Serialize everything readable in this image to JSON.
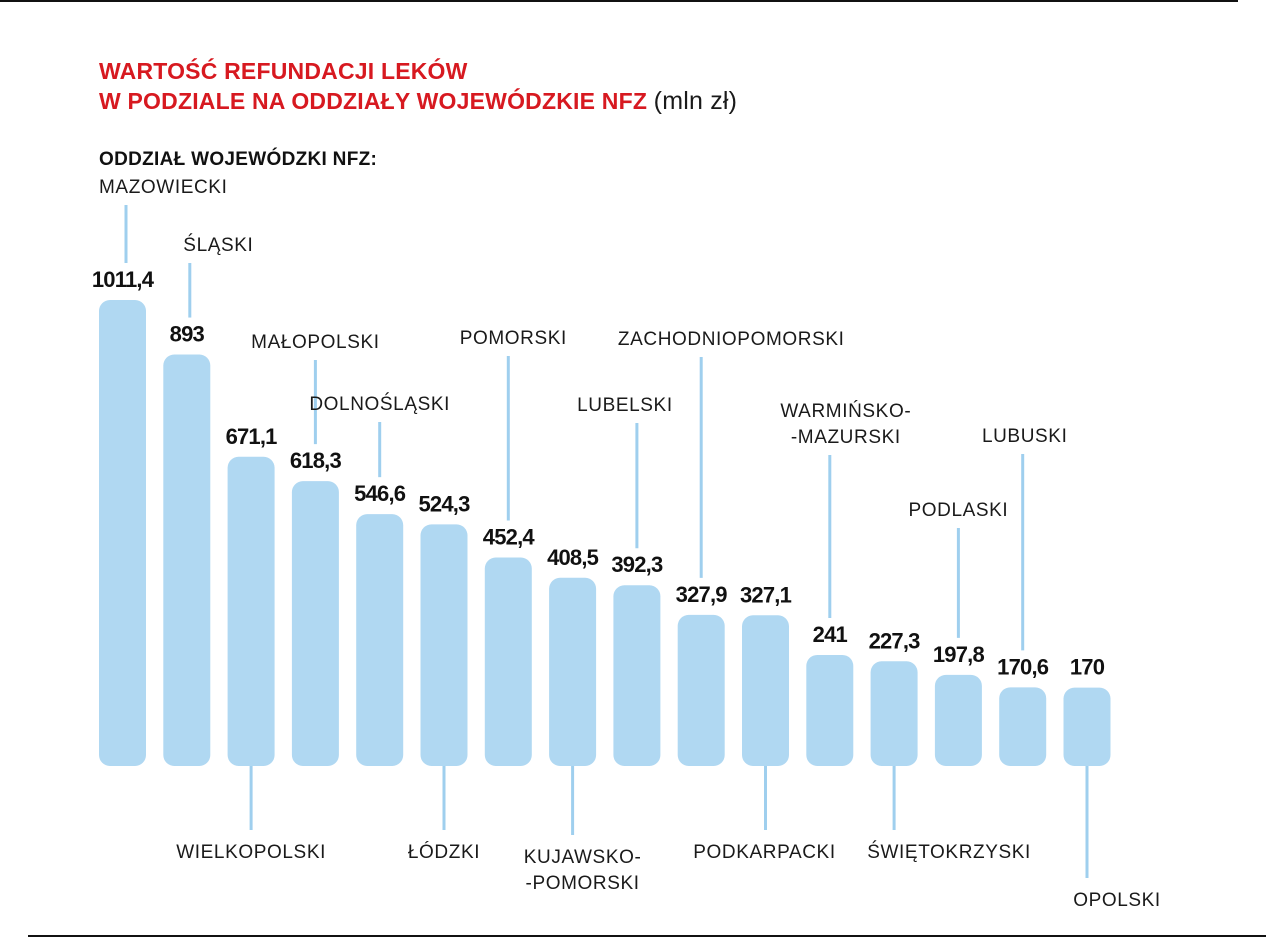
{
  "title": {
    "line1": "WARTOŚĆ REFUNDACJI LEKÓW",
    "line2": "W PODZIALE NA ODDZIAŁY WOJEWÓDZKIE NFZ",
    "unit": "(mln zł)"
  },
  "subheading": "ODDZIAŁ WOJEWÓDZKI NFZ:",
  "colors": {
    "bar": "#b0d8f2",
    "leader": "#9fcfee",
    "title": "#d71920",
    "text": "#1a1a1a"
  },
  "chart_data": {
    "type": "bar",
    "title": "WARTOŚĆ REFUNDACJI LEKÓW W PODZIALE NA ODDZIAŁY WOJEWÓDZKIE NFZ (mln zł)",
    "xlabel": "ODDZIAŁ WOJEWÓDZKI NFZ:",
    "ylabel": "",
    "ylim": [
      0,
      1011.4
    ],
    "grid": false,
    "categories": [
      "MAZOWIECKI",
      "ŚLĄSKI",
      "WIELKOPOLSKI",
      "MAŁOPOLSKI",
      "DOLNOŚLĄSKI",
      "ŁÓDZKI",
      "POMORSKI",
      "KUJAWSKO--POMORSKI",
      "LUBELSKI",
      "ZACHODNIOPOMORSKI",
      "PODKARPACKI",
      "WARMIŃSKO--MAZURSKI",
      "ŚWIĘTOKRZYSKI",
      "PODLASKI",
      "LUBUSKI",
      "OPOLSKI"
    ],
    "values": [
      1011.4,
      893,
      671.1,
      618.3,
      546.6,
      524.3,
      452.4,
      408.5,
      392.3,
      327.9,
      327.1,
      241,
      227.3,
      197.8,
      170.6,
      170
    ],
    "value_labels": [
      "1011,4",
      "893",
      "671,1",
      "618,3",
      "546,6",
      "524,3",
      "452,4",
      "408,5",
      "392,3",
      "327,9",
      "327,1",
      "241",
      "227,3",
      "197,8",
      "170,6",
      "170"
    ],
    "category_labels": [
      [
        "MAZOWIECKI"
      ],
      [
        "ŚLĄSKI"
      ],
      [
        "WIELKOPOLSKI"
      ],
      [
        "MAŁOPOLSKI"
      ],
      [
        "DOLNOŚLĄSKI"
      ],
      [
        "ŁÓDZKI"
      ],
      [
        "POMORSKI"
      ],
      [
        "KUJAWSKO-",
        "-POMORSKI"
      ],
      [
        "LUBELSKI"
      ],
      [
        "ZACHODNIOPOMORSKI"
      ],
      [
        "PODKARPACKI"
      ],
      [
        "WARMIŃSKO-",
        "-MAZURSKI"
      ],
      [
        "ŚWIĘTOKRZYSKI"
      ],
      [
        "PODLASKI"
      ],
      [
        "LUBUSKI"
      ],
      [
        "OPOLSKI"
      ]
    ]
  }
}
